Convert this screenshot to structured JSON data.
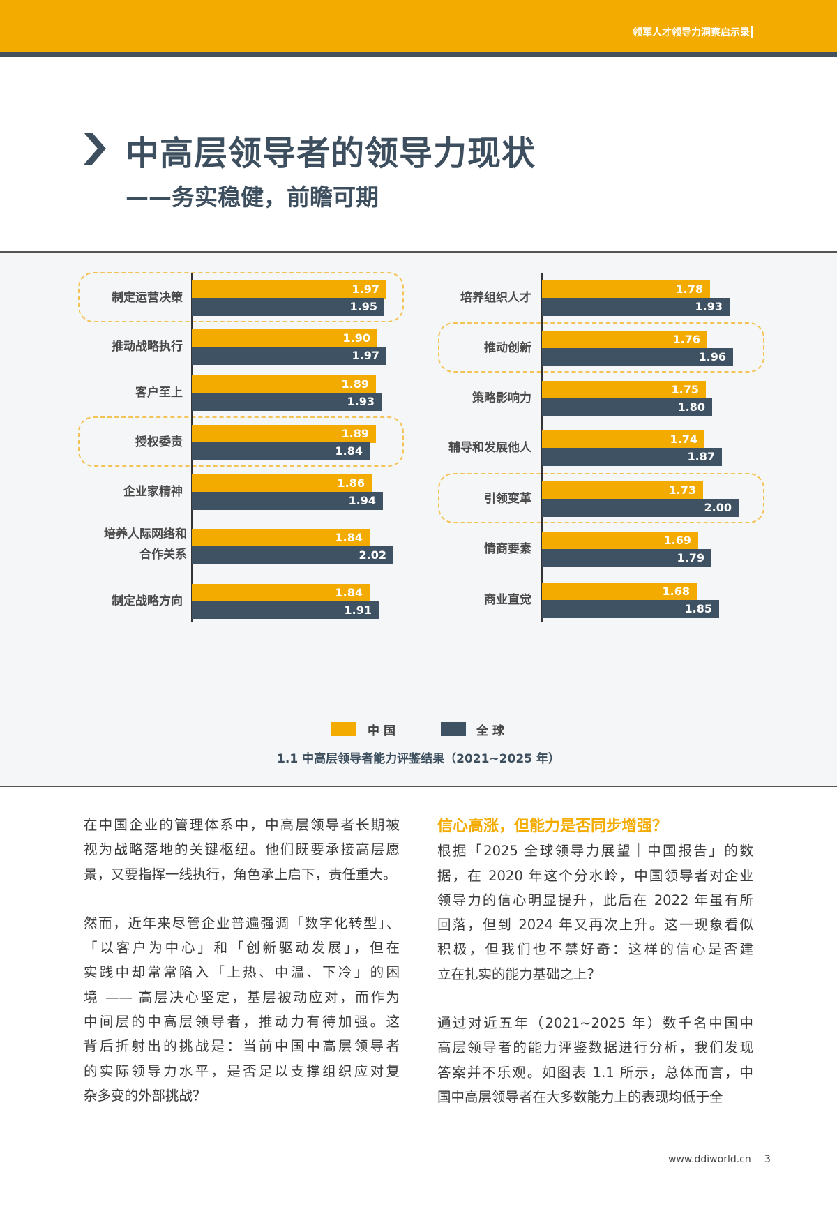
{
  "header": {
    "running_title": "领军人才领导力洞察启示录"
  },
  "page": {
    "title": "中高层领导者的领导力现状",
    "subtitle": "——务实稳健，前瞻可期"
  },
  "colors": {
    "china": "#f4ab00",
    "global": "#3f5263",
    "highlight": "#f4c356"
  },
  "chart_data": {
    "type": "bar",
    "orientation": "horizontal",
    "title": "1.1 中高层领导者能力评鉴结果（2021~2025 年）",
    "legend": [
      {
        "name": "中国",
        "color": "#f4ab00"
      },
      {
        "name": "全球",
        "color": "#3f5263"
      }
    ],
    "legend_placement": "bottom",
    "panels": [
      {
        "categories": [
          "制定运营决策",
          "推动战略执行",
          "客户至上",
          "授权委责",
          "企业家精神",
          "培养人际网络和\n合作关系",
          "制定战略方向"
        ],
        "series": [
          {
            "name": "中国",
            "values": [
              1.97,
              1.9,
              1.89,
              1.89,
              1.86,
              1.84,
              1.84
            ]
          },
          {
            "name": "全球",
            "values": [
              1.95,
              1.97,
              1.93,
              1.84,
              1.94,
              2.02,
              1.91
            ]
          }
        ],
        "highlighted": [
          "制定运营决策",
          "授权委责"
        ]
      },
      {
        "categories": [
          "培养组织人才",
          "推动创新",
          "策略影响力",
          "辅导和发展他人",
          "引领变革",
          "情商要素",
          "商业直觉"
        ],
        "series": [
          {
            "name": "中国",
            "values": [
              1.78,
              1.76,
              1.75,
              1.74,
              1.73,
              1.69,
              1.68
            ]
          },
          {
            "name": "全球",
            "values": [
              1.93,
              1.96,
              1.8,
              1.87,
              2.0,
              1.79,
              1.85
            ]
          }
        ],
        "highlighted": [
          "推动创新",
          "引领变革"
        ]
      }
    ]
  },
  "body": {
    "left": [
      [
        "在中国企业的管理体系中，中高层领导者长期被",
        "视为战略落地的关键枢纽。他们既要承接高层愿",
        "景，又要指挥一线执行，角色承上启下，责任重大。"
      ],
      [
        "然而，近年来尽管企业普遍强调「数字化转型」、",
        "「以客户为中心」和「创新驱动发展」，但在",
        "实践中却常常陷入「上热、中温、下冷」的困",
        "境 —— 高层决心坚定，基层被动应对，而作为",
        "中间层的中高层领导者，推动力有待加强。这",
        "背后折射出的挑战是：当前中国中高层领导者",
        "的实际领导力水平，是否足以支撑组织应对复",
        "杂多变的外部挑战？"
      ]
    ],
    "right_heading": "信心高涨，但能力是否同步增强？",
    "right": [
      [
        "根据「2025 全球领导力展望｜中国报告」的数",
        "据，在 2020 年这个分水岭，中国领导者对企业",
        "领导力的信心明显提升，此后在 2022 年虽有所",
        "回落，但到 2024 年又再次上升。这一现象看似",
        "积极，但我们也不禁好奇：这样的信心是否建",
        "立在扎实的能力基础之上？"
      ],
      [
        "通过对近五年（2021~2025 年）数千名中国中",
        "高层领导者的能力评鉴数据进行分析，我们发现",
        "答案并不乐观。如图表 1.1 所示，总体而言，中",
        "国中高层领导者在大多数能力上的表现均低于全"
      ]
    ]
  },
  "footer": {
    "website": "www.ddiworld.cn",
    "page_number": "3"
  }
}
